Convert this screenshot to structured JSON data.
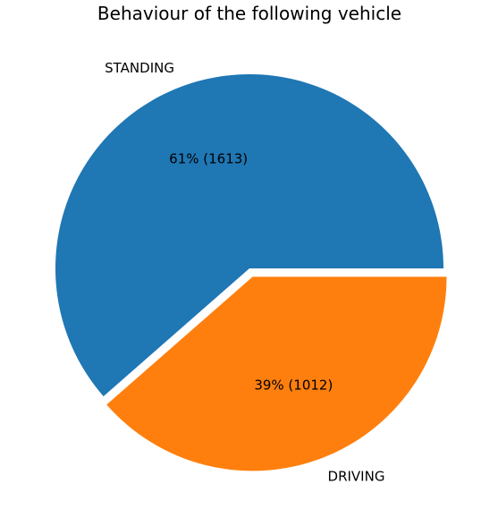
{
  "chart_data": {
    "type": "pie",
    "title": "Behaviour of the following vehicle",
    "slices": [
      {
        "label": "STANDING",
        "value": 1613,
        "percent_label": "61% (1613)",
        "color": "#1f77b4",
        "exploded": false
      },
      {
        "label": "DRIVING",
        "value": 1012,
        "percent_label": "39% (1012)",
        "color": "#ff7f0e",
        "exploded": true
      }
    ],
    "start_angle_deg": 0,
    "direction": "counterclockwise"
  }
}
